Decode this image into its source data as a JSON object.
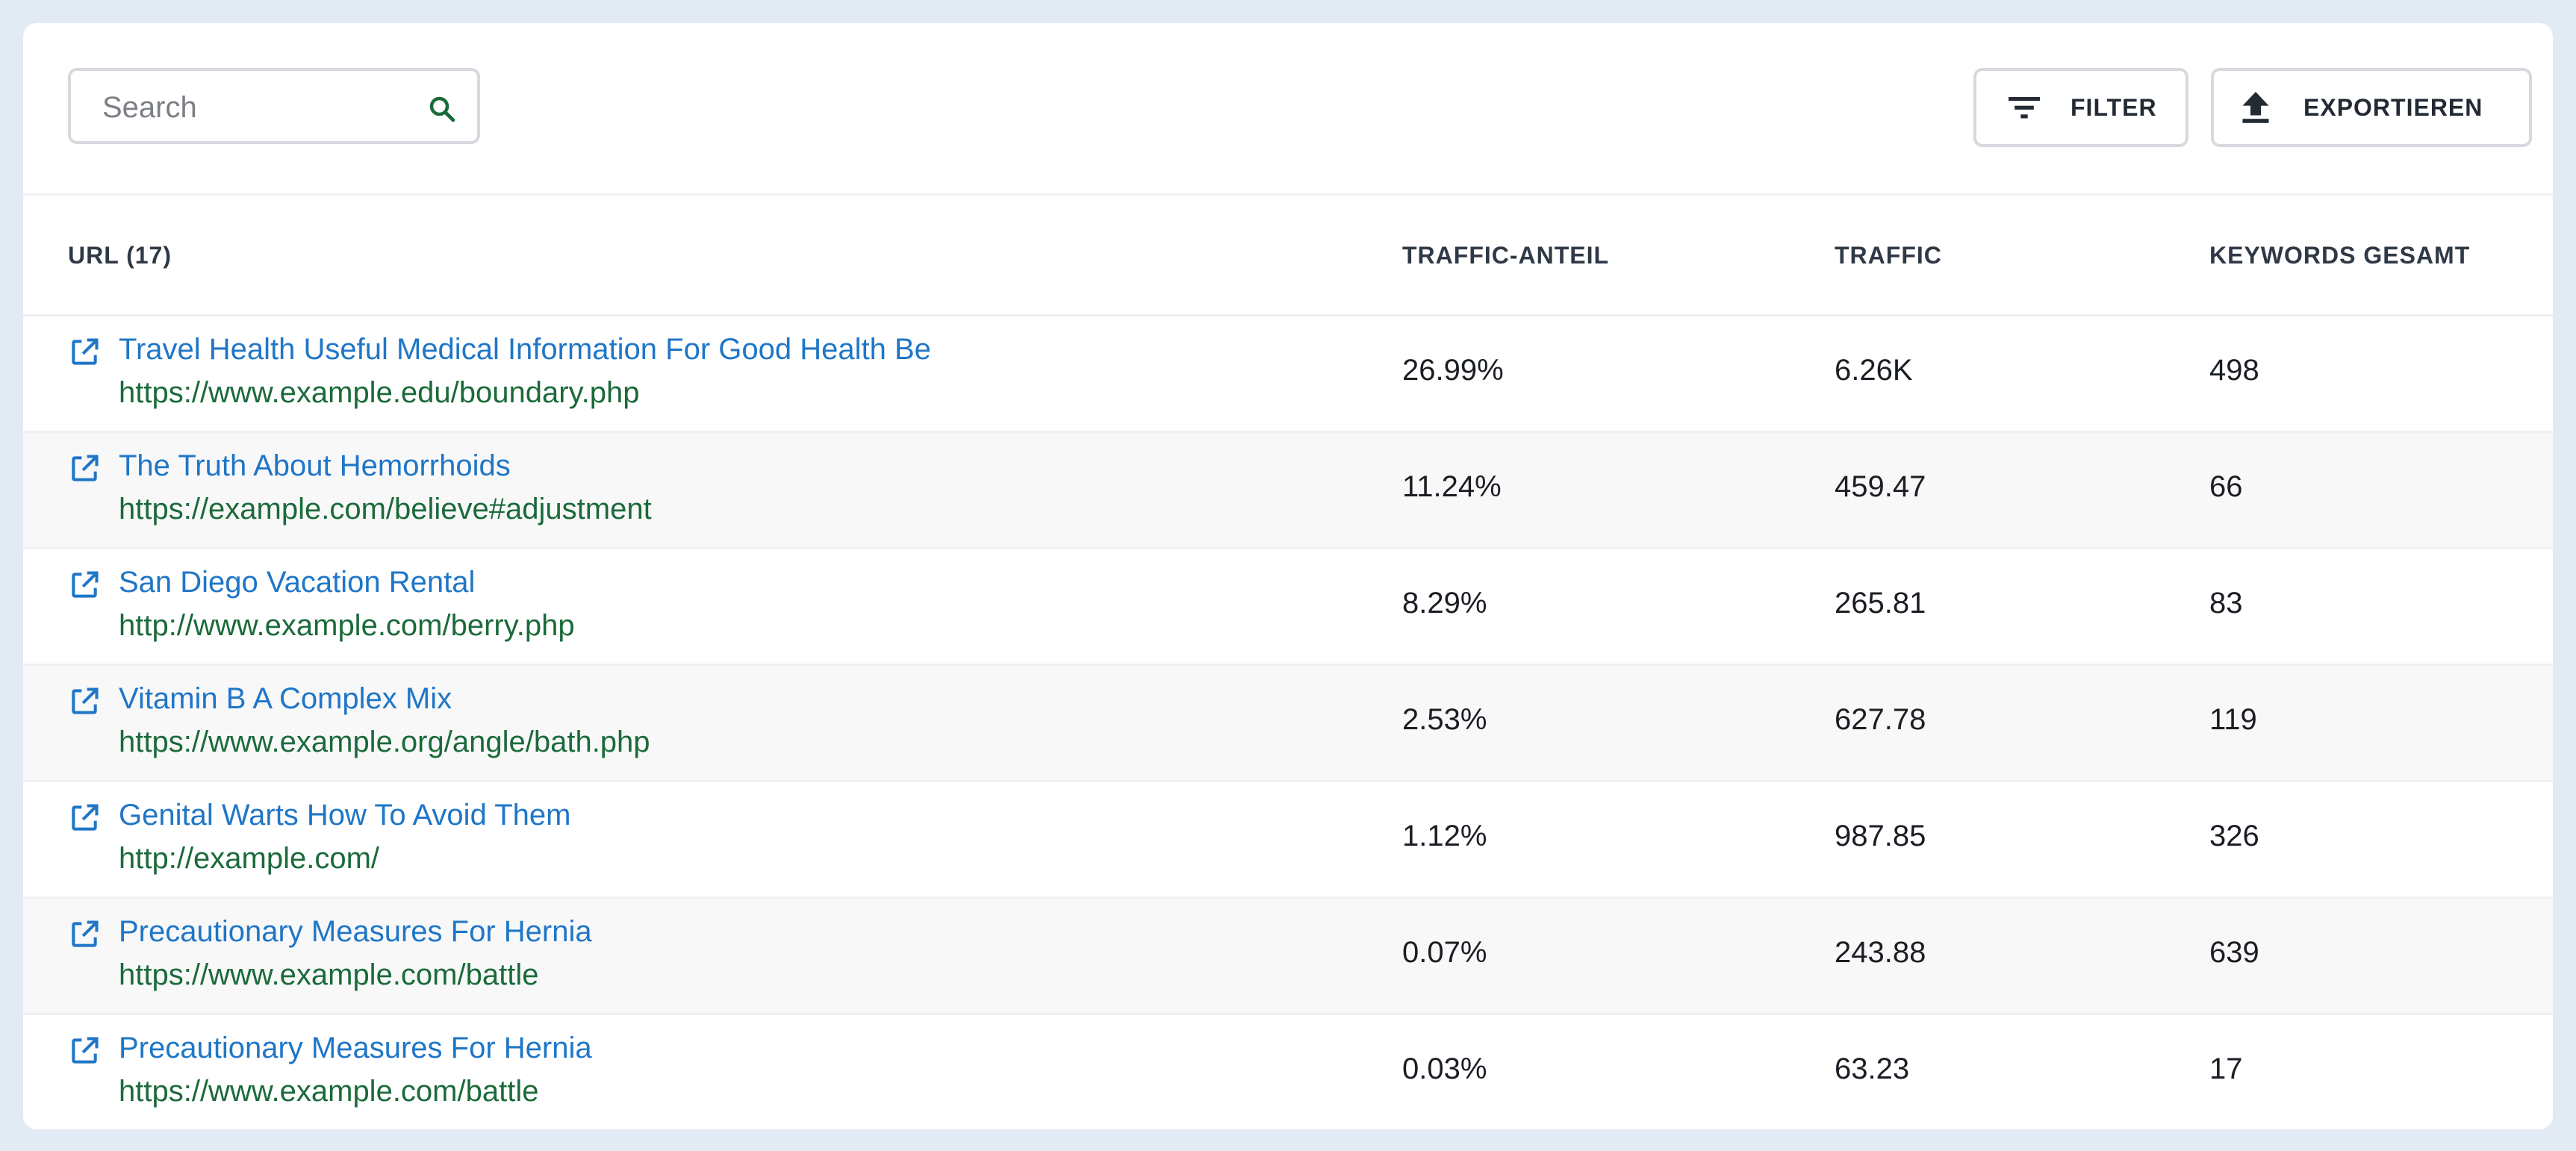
{
  "toolbar": {
    "search": {
      "placeholder": "Search",
      "value": "",
      "icon": "search-icon"
    },
    "filter_label": "FILTER",
    "export_label": "EXPORTIEREN"
  },
  "table": {
    "headers": {
      "url": "URL (17)",
      "traffic_share": "TRAFFIC-ANTEIL",
      "traffic": "TRAFFIC",
      "keywords_total": "KEYWORDS GESAMT"
    },
    "rows": [
      {
        "title": "Travel Health Useful Medical Information For Good Health Be",
        "url": "https://www.example.edu/boundary.php",
        "traffic_share": "26.99%",
        "traffic": "6.26K",
        "keywords": "498"
      },
      {
        "title": "The Truth About Hemorrhoids",
        "url": "https://example.com/believe#adjustment",
        "traffic_share": "11.24%",
        "traffic": "459.47",
        "keywords": "66"
      },
      {
        "title": "San Diego Vacation Rental",
        "url": "http://www.example.com/berry.php",
        "traffic_share": "8.29%",
        "traffic": "265.81",
        "keywords": "83"
      },
      {
        "title": "Vitamin B A Complex Mix",
        "url": "https://www.example.org/angle/bath.php",
        "traffic_share": "2.53%",
        "traffic": "627.78",
        "keywords": "119"
      },
      {
        "title": "Genital Warts How To Avoid Them",
        "url": "http://example.com/",
        "traffic_share": "1.12%",
        "traffic": "987.85",
        "keywords": "326"
      },
      {
        "title": "Precautionary Measures For Hernia",
        "url": "https://www.example.com/battle",
        "traffic_share": "0.07%",
        "traffic": "243.88",
        "keywords": "639"
      },
      {
        "title": "Precautionary Measures For Hernia",
        "url": "https://www.example.com/battle",
        "traffic_share": "0.03%",
        "traffic": "63.23",
        "keywords": "17"
      }
    ]
  },
  "colors": {
    "link": "#1f76c7",
    "url": "#1b6a3a",
    "search_icon": "#1b6a3a",
    "background": "#e2eaf3"
  }
}
